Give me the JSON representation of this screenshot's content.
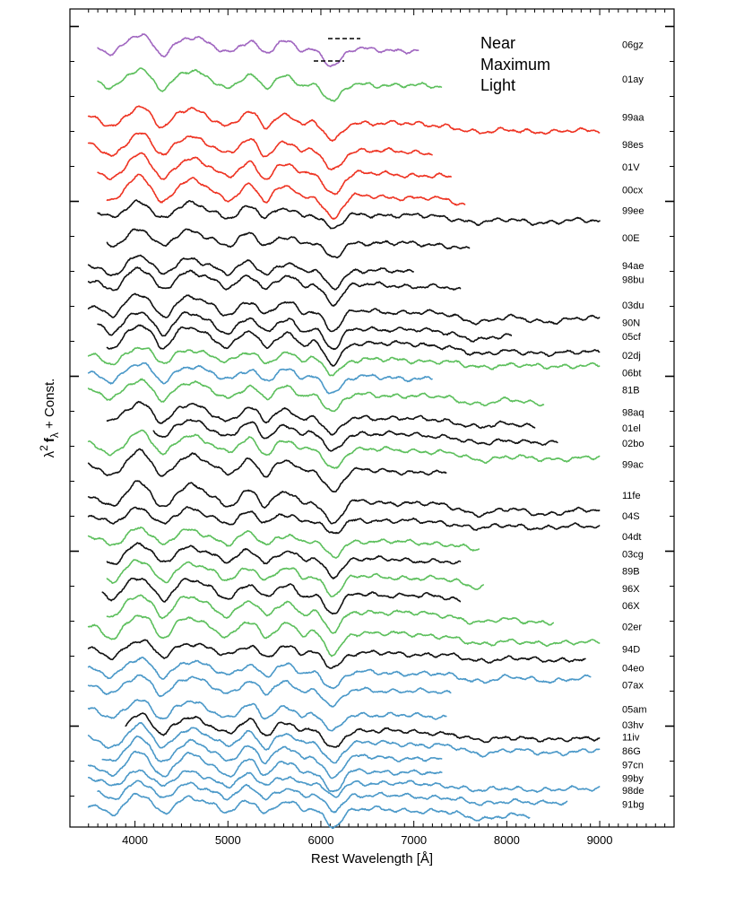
{
  "chart_data": {
    "type": "line",
    "title": "",
    "xlabel": "Rest Wavelength [Å]",
    "ylabel_main": "λ",
    "ylabel_sup": "2",
    "ylabel_f": "f",
    "ylabel_sub": "λ",
    "ylabel_rest": " + Const.",
    "xlim": [
      3300,
      9800
    ],
    "x_ticks": [
      4000,
      5000,
      6000,
      7000,
      8000,
      9000
    ],
    "x_tick_labels": [
      "4000",
      "5000",
      "6000",
      "7000",
      "8000",
      "9000"
    ],
    "annotation": [
      "Near",
      "Maximum",
      "Light"
    ],
    "colors": {
      "purple": "#a066c0",
      "green": "#5cbf5c",
      "red": "#ee3322",
      "black": "#111111",
      "blue": "#4a98c8"
    },
    "series": [
      {
        "name": "06gz",
        "color": "purple",
        "x_start": 3600,
        "x_end": 7050,
        "offset": 0.3
      },
      {
        "name": "01ay",
        "color": "green",
        "x_start": 3600,
        "x_end": 7300,
        "offset": 1.3
      },
      {
        "name": "99aa",
        "color": "red",
        "x_start": 3500,
        "x_end": 9000,
        "offset": 2.4
      },
      {
        "name": "98es",
        "color": "red",
        "x_start": 3500,
        "x_end": 7200,
        "offset": 3.2
      },
      {
        "name": "01V",
        "color": "red",
        "x_start": 3600,
        "x_end": 7400,
        "offset": 3.85
      },
      {
        "name": "00cx",
        "color": "red",
        "x_start": 3700,
        "x_end": 7550,
        "offset": 4.5
      },
      {
        "name": "99ee",
        "color": "black",
        "x_start": 3600,
        "x_end": 9000,
        "offset": 5.1
      },
      {
        "name": "00E",
        "color": "black",
        "x_start": 3700,
        "x_end": 7600,
        "offset": 5.9
      },
      {
        "name": "94ae",
        "color": "black",
        "x_start": 3500,
        "x_end": 7000,
        "offset": 6.7
      },
      {
        "name": "98bu",
        "color": "black",
        "x_start": 3500,
        "x_end": 7500,
        "offset": 7.1
      },
      {
        "name": "03du",
        "color": "black",
        "x_start": 3500,
        "x_end": 9000,
        "offset": 7.85
      },
      {
        "name": "90N",
        "color": "black",
        "x_start": 3600,
        "x_end": 8050,
        "offset": 8.35
      },
      {
        "name": "05cf",
        "color": "black",
        "x_start": 3700,
        "x_end": 9000,
        "offset": 8.75
      },
      {
        "name": "02dj",
        "color": "green",
        "x_start": 3500,
        "x_end": 9000,
        "offset": 9.3
      },
      {
        "name": "06bt",
        "color": "blue",
        "x_start": 3500,
        "x_end": 7200,
        "offset": 9.8
      },
      {
        "name": "81B",
        "color": "green",
        "x_start": 3500,
        "x_end": 8400,
        "offset": 10.3
      },
      {
        "name": "98aq",
        "color": "black",
        "x_start": 3700,
        "x_end": 8300,
        "offset": 10.95
      },
      {
        "name": "01el",
        "color": "black",
        "x_start": 4200,
        "x_end": 8550,
        "offset": 11.4
      },
      {
        "name": "02bo",
        "color": "green",
        "x_start": 3500,
        "x_end": 9000,
        "offset": 11.85
      },
      {
        "name": "99ac",
        "color": "black",
        "x_start": 3500,
        "x_end": 7350,
        "offset": 12.45
      },
      {
        "name": "11fe",
        "color": "black",
        "x_start": 3500,
        "x_end": 9000,
        "offset": 13.35
      },
      {
        "name": "04S",
        "color": "black",
        "x_start": 3500,
        "x_end": 9000,
        "offset": 13.95
      },
      {
        "name": "04dt",
        "color": "green",
        "x_start": 3500,
        "x_end": 7700,
        "offset": 14.55
      },
      {
        "name": "03cg",
        "color": "black",
        "x_start": 3700,
        "x_end": 7500,
        "offset": 15.05
      },
      {
        "name": "89B",
        "color": "green",
        "x_start": 3700,
        "x_end": 7750,
        "offset": 15.55
      },
      {
        "name": "96X",
        "color": "black",
        "x_start": 3650,
        "x_end": 7500,
        "offset": 16.05
      },
      {
        "name": "06X",
        "color": "green",
        "x_start": 3700,
        "x_end": 8500,
        "offset": 16.55
      },
      {
        "name": "02er",
        "color": "green",
        "x_start": 3500,
        "x_end": 9000,
        "offset": 17.15
      },
      {
        "name": "94D",
        "color": "black",
        "x_start": 3500,
        "x_end": 8850,
        "offset": 17.8
      },
      {
        "name": "04eo",
        "color": "blue",
        "x_start": 3500,
        "x_end": 8900,
        "offset": 18.35
      },
      {
        "name": "07ax",
        "color": "blue",
        "x_start": 3500,
        "x_end": 7400,
        "offset": 18.85
      },
      {
        "name": "05am",
        "color": "blue",
        "x_start": 3500,
        "x_end": 7350,
        "offset": 19.55
      },
      {
        "name": "03hv",
        "color": "black",
        "x_start": 3900,
        "x_end": 9000,
        "offset": 20.0
      },
      {
        "name": "11iv",
        "color": "blue",
        "x_start": 3500,
        "x_end": 9000,
        "offset": 20.35
      },
      {
        "name": "86G",
        "color": "blue",
        "x_start": 3650,
        "x_end": 7300,
        "offset": 20.75
      },
      {
        "name": "97cn",
        "color": "blue",
        "x_start": 3500,
        "x_end": 7300,
        "offset": 21.15
      },
      {
        "name": "99by",
        "color": "blue",
        "x_start": 3500,
        "x_end": 9000,
        "offset": 21.55
      },
      {
        "name": "98de",
        "color": "blue",
        "x_start": 3600,
        "x_end": 8650,
        "offset": 21.9
      },
      {
        "name": "91bg",
        "color": "blue",
        "x_start": 3500,
        "x_end": 8250,
        "offset": 22.3
      }
    ]
  }
}
